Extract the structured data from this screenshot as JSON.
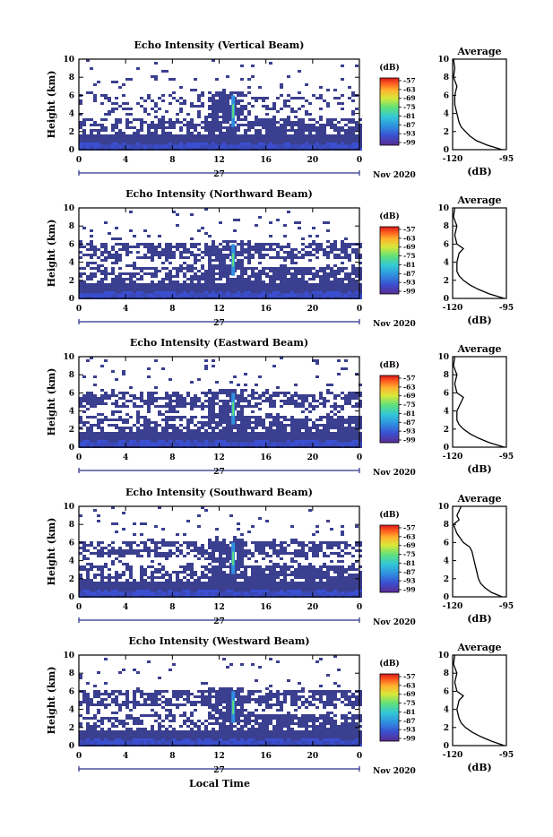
{
  "figure": {
    "xlabel": "Local Time",
    "date_label": "Nov 2020",
    "day_label": "27",
    "colorbar_unit": "(dB)",
    "colorbar_ticks": [
      "-57",
      "-63",
      "-69",
      "-75",
      "-81",
      "-87",
      "-93",
      "-99"
    ],
    "avg_title": "Average",
    "avg_xlabel": "(dB)",
    "ylabel": "Height (km)",
    "colors": {
      "background": "#ffffff",
      "low_echo": "#3b3f8f",
      "colormap": [
        "#5a2d91",
        "#3a4fd0",
        "#2f8fe0",
        "#33c7d8",
        "#5fe07a",
        "#d9e83a",
        "#ffb22e",
        "#ff5a1e",
        "#d7191c"
      ]
    }
  },
  "chart_data": [
    {
      "type": "heatmap",
      "title": "Echo Intensity (Vertical Beam)",
      "xlabel": "",
      "ylabel": "Height (km)",
      "xlim": [
        0,
        24
      ],
      "ylim": [
        0,
        10
      ],
      "xticks": [
        "0",
        "4",
        "8",
        "12",
        "16",
        "20",
        "0"
      ],
      "yticks": [
        "0",
        "2",
        "4",
        "6",
        "8",
        "10"
      ],
      "value_range_db": [
        -99,
        -57
      ],
      "profile": {
        "title": "Average",
        "xlabel": "(dB)",
        "xticks": [
          "-120",
          "-95"
        ],
        "xlim": [
          -120,
          -95
        ],
        "yticks": [
          "0",
          "2",
          "4",
          "6",
          "8",
          "10"
        ],
        "height_km": [
          0,
          0.5,
          1,
          1.5,
          2,
          2.5,
          3,
          4,
          5,
          6,
          7,
          8,
          9,
          10
        ],
        "db": [
          -97,
          -104,
          -109,
          -112,
          -114,
          -116,
          -117,
          -118,
          -119,
          -119,
          -118,
          -120,
          -119,
          -120
        ]
      }
    },
    {
      "type": "heatmap",
      "title": "Echo Intensity (Northward Beam)",
      "xlabel": "",
      "ylabel": "Height (km)",
      "xlim": [
        0,
        24
      ],
      "ylim": [
        0,
        10
      ],
      "xticks": [
        "0",
        "4",
        "8",
        "12",
        "16",
        "20",
        "0"
      ],
      "yticks": [
        "0",
        "2",
        "4",
        "6",
        "8",
        "10"
      ],
      "value_range_db": [
        -99,
        -57
      ],
      "profile": {
        "title": "Average",
        "xlabel": "(dB)",
        "xticks": [
          "-120",
          "-95"
        ],
        "xlim": [
          -120,
          -95
        ],
        "yticks": [
          "0",
          "2",
          "4",
          "6",
          "8",
          "10"
        ],
        "height_km": [
          0,
          0.5,
          1,
          1.5,
          2,
          2.5,
          3,
          4,
          5,
          5.5,
          6,
          7,
          8,
          9,
          10
        ],
        "db": [
          -96,
          -103,
          -108,
          -112,
          -115,
          -117,
          -118,
          -118,
          -117,
          -115,
          -118,
          -119,
          -118,
          -120,
          -119
        ]
      }
    },
    {
      "type": "heatmap",
      "title": "Echo Intensity (Eastward Beam)",
      "xlabel": "",
      "ylabel": "Height (km)",
      "xlim": [
        0,
        24
      ],
      "ylim": [
        0,
        10
      ],
      "xticks": [
        "0",
        "4",
        "8",
        "12",
        "16",
        "20",
        "0"
      ],
      "yticks": [
        "0",
        "2",
        "4",
        "6",
        "8",
        "10"
      ],
      "value_range_db": [
        -99,
        -57
      ],
      "profile": {
        "title": "Average",
        "xlabel": "(dB)",
        "xticks": [
          "-120",
          "-95"
        ],
        "xlim": [
          -120,
          -95
        ],
        "yticks": [
          "0",
          "2",
          "4",
          "6",
          "8",
          "10"
        ],
        "height_km": [
          0,
          0.5,
          1,
          1.5,
          2,
          2.5,
          3,
          4,
          5,
          5.5,
          6,
          7,
          8,
          9,
          10
        ],
        "db": [
          -96,
          -103,
          -108,
          -112,
          -115,
          -117,
          -118,
          -118,
          -116,
          -115,
          -118,
          -119,
          -118,
          -120,
          -119
        ]
      }
    },
    {
      "type": "heatmap",
      "title": "Echo Intensity (Southward Beam)",
      "xlabel": "",
      "ylabel": "Height (km)",
      "xlim": [
        0,
        24
      ],
      "ylim": [
        0,
        10
      ],
      "xticks": [
        "0",
        "4",
        "8",
        "12",
        "16",
        "20",
        "0"
      ],
      "yticks": [
        "0",
        "2",
        "4",
        "6",
        "8",
        "10"
      ],
      "value_range_db": [
        -99,
        -57
      ],
      "profile": {
        "title": "Average",
        "xlabel": "(dB)",
        "xticks": [
          "-120",
          "-95"
        ],
        "xlim": [
          -120,
          -95
        ],
        "yticks": [
          "0",
          "2",
          "4",
          "6",
          "8",
          "10"
        ],
        "height_km": [
          0,
          0.5,
          1,
          1.5,
          2,
          3,
          4,
          5,
          5.5,
          6,
          7,
          8,
          8.5,
          9,
          10
        ],
        "db": [
          -97,
          -102,
          -105,
          -107,
          -108,
          -109,
          -110,
          -111,
          -112,
          -115,
          -118,
          -120,
          -117,
          -118,
          -116
        ]
      }
    },
    {
      "type": "heatmap",
      "title": "Echo Intensity (Westward Beam)",
      "xlabel": "Local Time",
      "ylabel": "Height (km)",
      "xlim": [
        0,
        24
      ],
      "ylim": [
        0,
        10
      ],
      "xticks": [
        "0",
        "4",
        "8",
        "12",
        "16",
        "20",
        "0"
      ],
      "yticks": [
        "0",
        "2",
        "4",
        "6",
        "8",
        "10"
      ],
      "value_range_db": [
        -99,
        -57
      ],
      "profile": {
        "title": "Average",
        "xlabel": "(dB)",
        "xticks": [
          "-120",
          "-95"
        ],
        "xlim": [
          -120,
          -95
        ],
        "yticks": [
          "0",
          "2",
          "4",
          "6",
          "8",
          "10"
        ],
        "height_km": [
          0,
          0.5,
          1,
          1.5,
          2,
          2.5,
          3,
          4,
          5,
          5.5,
          6,
          7,
          8,
          9,
          10
        ],
        "db": [
          -96,
          -102,
          -107,
          -111,
          -114,
          -116,
          -117,
          -118,
          -117,
          -115,
          -118,
          -119,
          -118,
          -120,
          -119
        ]
      }
    }
  ]
}
